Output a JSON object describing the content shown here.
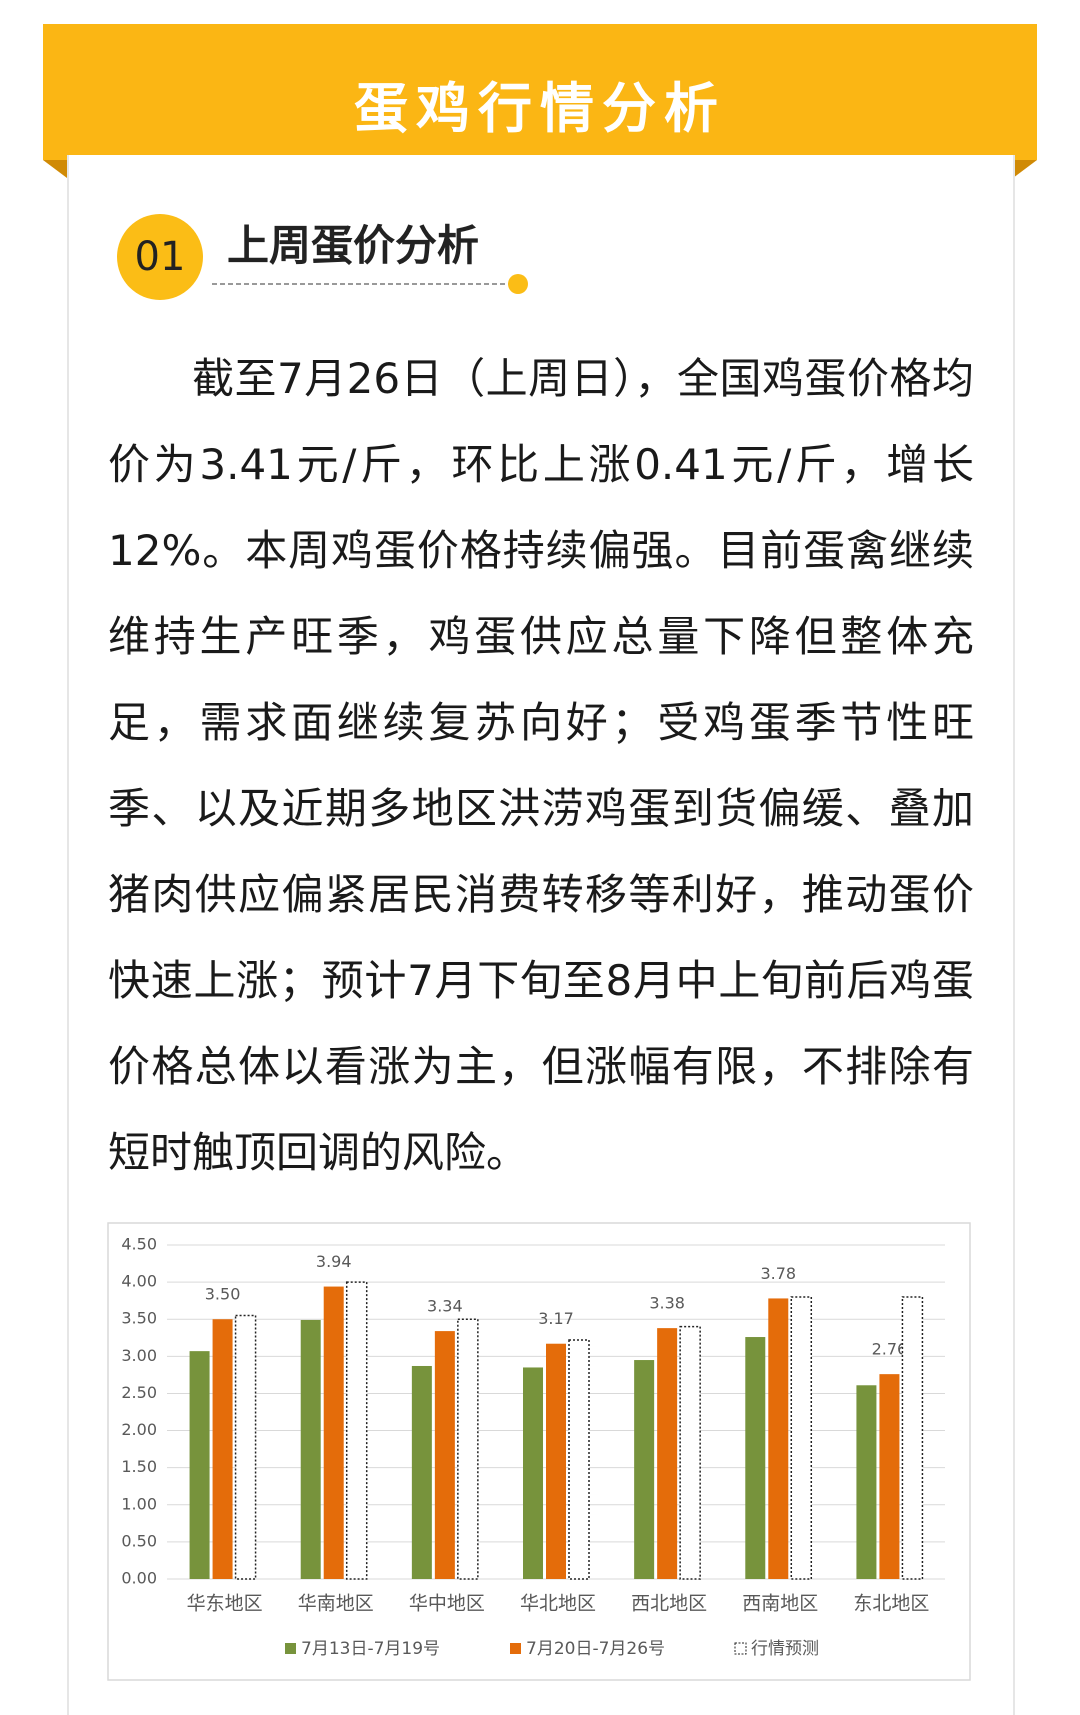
{
  "header": {
    "title": "蛋鸡行情分析"
  },
  "section": {
    "number": "01",
    "title": "上周蛋价分析"
  },
  "paragraph": {
    "text": "截至7月26日（上周日），全国鸡蛋价格均价为3.41元/斤，环比上涨0.41元/斤，增长12%。本周鸡蛋价格持续偏强。目前蛋禽继续维持生产旺季，鸡蛋供应总量下降但整体充足，需求面继续复苏向好；受鸡蛋季节性旺季、以及近期多地区洪涝鸡蛋到货偏缓、叠加猪肉供应偏紧居民消费转移等利好，推动蛋价快速上涨；预计7月下旬至8月中上旬前后鸡蛋价格总体以看涨为主，但涨幅有限，不排除有短时触顶回调的风险。"
  },
  "chart_data": {
    "type": "bar",
    "categories": [
      "华东地区",
      "华南地区",
      "华中地区",
      "华北地区",
      "西北地区",
      "西南地区",
      "东北地区"
    ],
    "series": [
      {
        "name": "7月13日-7月19号",
        "color": "#77933c",
        "values": [
          3.07,
          3.49,
          2.87,
          2.85,
          2.95,
          3.26,
          2.61
        ]
      },
      {
        "name": "7月20日-7月26号",
        "color": "#e46c0a",
        "values": [
          3.5,
          3.94,
          3.34,
          3.17,
          3.38,
          3.78,
          2.76
        ],
        "value_labels": [
          "3.50",
          "3.94",
          "3.34",
          "3.17",
          "3.38",
          "3.78",
          "2.76"
        ]
      },
      {
        "name": "行情预测",
        "color": "#ffffff",
        "dashed": true,
        "values": [
          3.55,
          4.0,
          3.5,
          3.22,
          3.4,
          3.8,
          3.8
        ]
      }
    ],
    "ylim": [
      0,
      4.5
    ],
    "yticks": [
      {
        "value": 0,
        "label": "0.00"
      },
      {
        "value": 0.5,
        "label": "0.50"
      },
      {
        "value": 1,
        "label": "1.00"
      },
      {
        "value": 1.5,
        "label": "1.50"
      },
      {
        "value": 2,
        "label": "2.00"
      },
      {
        "value": 2.5,
        "label": "2.50"
      },
      {
        "value": 3,
        "label": "3.00"
      },
      {
        "value": 3.5,
        "label": "3.50"
      },
      {
        "value": 4,
        "label": "4.00"
      },
      {
        "value": 4.5,
        "label": "4.50"
      }
    ],
    "grid": true
  }
}
